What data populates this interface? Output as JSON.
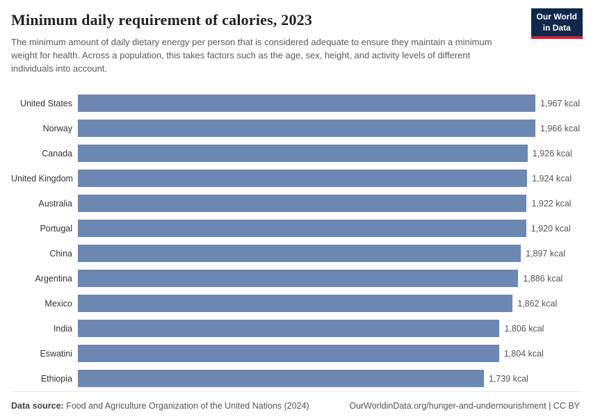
{
  "header": {
    "title": "Minimum daily requirement of calories, 2023",
    "subtitle": "The minimum amount of daily dietary energy per person that is considered adequate to ensure they maintain a minimum weight for health. Across a population, this takes factors such as the age, sex, height, and activity levels of different individuals into account.",
    "logo": {
      "line1": "Our World",
      "line2": "in Data"
    }
  },
  "chart_data": {
    "type": "bar",
    "orientation": "horizontal",
    "title": "Minimum daily requirement of calories, 2023",
    "unit": "kcal",
    "categories": [
      "United States",
      "Norway",
      "Canada",
      "United Kingdom",
      "Australia",
      "Portugal",
      "China",
      "Argentina",
      "Mexico",
      "India",
      "Eswatini",
      "Ethiopia"
    ],
    "values": [
      1967,
      1966,
      1926,
      1924,
      1922,
      1920,
      1897,
      1886,
      1862,
      1806,
      1804,
      1739
    ],
    "value_labels": [
      "1,967 kcal",
      "1,966 kcal",
      "1,926 kcal",
      "1,924 kcal",
      "1,922 kcal",
      "1,920 kcal",
      "1,897 kcal",
      "1,886 kcal",
      "1,862 kcal",
      "1,806 kcal",
      "1,804 kcal",
      "1,739 kcal"
    ],
    "xlim": [
      0,
      2150
    ],
    "bar_color": "#6c87b2",
    "grid": false,
    "legend": "none"
  },
  "footer": {
    "datasource_label": "Data source:",
    "datasource_text": " Food and Agriculture Organization of the United Nations (2024)",
    "link_text": "OurWorldinData.org/hunger-and-undernourishment | CC BY"
  },
  "colors": {
    "bar": "#6c87b2",
    "logo_bg": "#10294b",
    "logo_accent": "#c02a34",
    "title_text": "#222222",
    "subtitle_text": "#5b5b5b"
  }
}
